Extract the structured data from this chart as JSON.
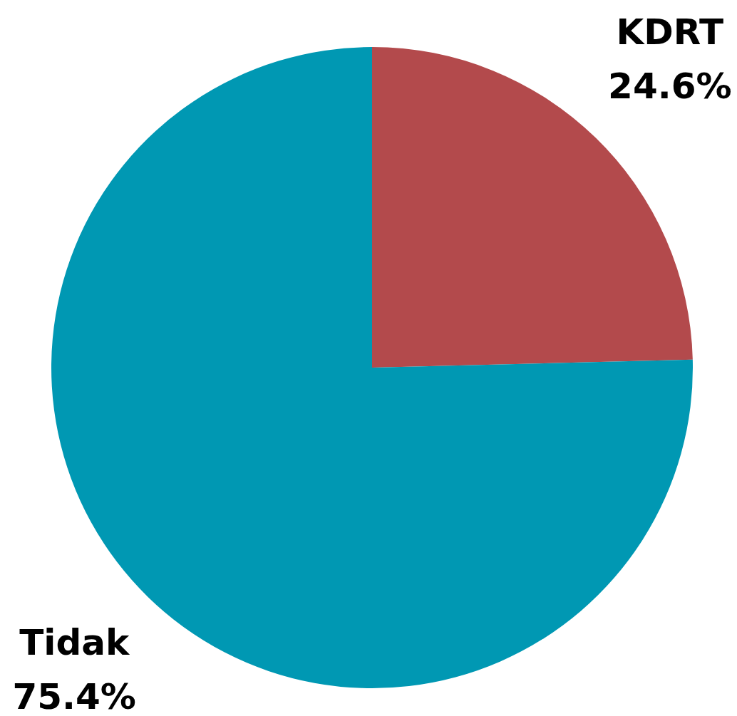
{
  "chart_data": {
    "type": "pie",
    "categories": [
      "KDRT",
      "Tidak"
    ],
    "values": [
      24.6,
      75.4
    ],
    "colors": [
      "#b34a4c",
      "#0098b3"
    ],
    "value_labels": [
      "24.6%",
      "75.4%"
    ],
    "legend": false
  }
}
